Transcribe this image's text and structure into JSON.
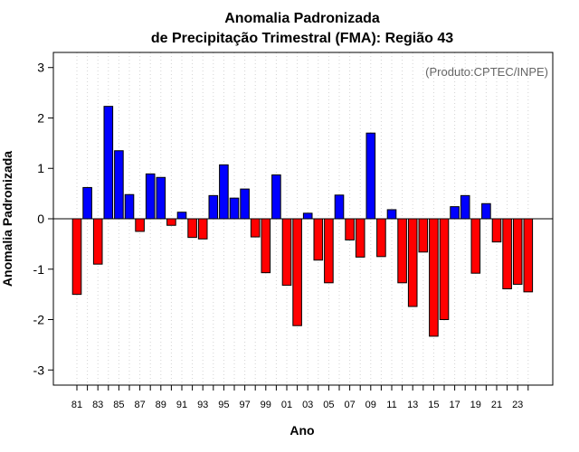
{
  "chart_data": {
    "type": "bar",
    "title_line1": "Anomalia Padronizada",
    "title_line2": "de Precipitação Trimestral (FMA): Região 43",
    "xlabel": "Ano",
    "ylabel": "Anomalia Padronizada",
    "annotation": "(Produto:CPTEC/INPE)",
    "ylim": [
      -3.3,
      3.3
    ],
    "yticks": [
      -3,
      -2,
      -1,
      0,
      1,
      2,
      3
    ],
    "grid": "vertical-dotted",
    "categories": [
      "81",
      "82",
      "83",
      "84",
      "85",
      "86",
      "87",
      "88",
      "89",
      "90",
      "91",
      "92",
      "93",
      "94",
      "95",
      "96",
      "97",
      "98",
      "99",
      "00",
      "01",
      "02",
      "03",
      "04",
      "05",
      "06",
      "07",
      "08",
      "09",
      "10",
      "11",
      "12",
      "13",
      "14",
      "15",
      "16",
      "17",
      "18",
      "19",
      "20",
      "21",
      "22",
      "23",
      "24"
    ],
    "xtick_labels": [
      "81",
      "83",
      "85",
      "87",
      "89",
      "91",
      "93",
      "95",
      "97",
      "99",
      "01",
      "03",
      "05",
      "07",
      "09",
      "11",
      "13",
      "15",
      "17",
      "19",
      "21",
      "23"
    ],
    "values": [
      -1.5,
      0.62,
      -0.9,
      2.23,
      1.35,
      0.48,
      -0.25,
      0.89,
      0.82,
      -0.13,
      0.13,
      -0.37,
      -0.4,
      0.46,
      1.07,
      0.41,
      0.59,
      -0.36,
      -1.07,
      0.87,
      -1.32,
      -2.12,
      0.11,
      -0.82,
      -1.27,
      0.47,
      -0.42,
      -0.76,
      1.7,
      -0.75,
      0.18,
      -1.27,
      -1.74,
      -0.66,
      -2.33,
      -2.0,
      0.24,
      0.46,
      -1.08,
      0.3,
      -0.46,
      -1.39,
      -1.3,
      -1.45
    ],
    "colors": {
      "positive": "#0000ff",
      "negative": "#ff0000",
      "border": "#000000",
      "grid": "#d3d3d3"
    }
  }
}
